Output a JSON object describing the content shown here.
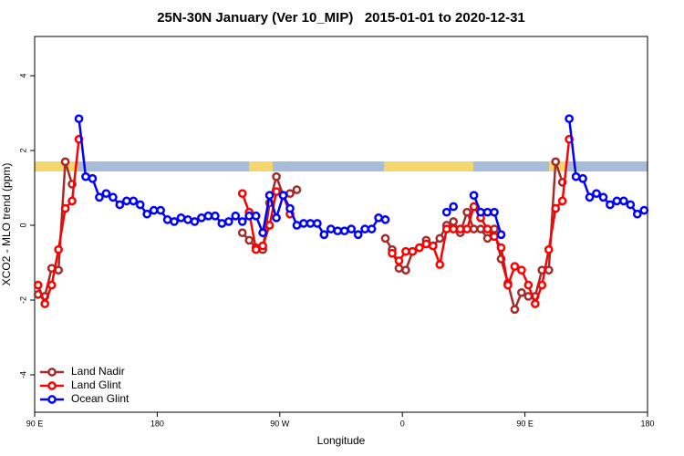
{
  "chart_data": {
    "type": "line",
    "title": "25N-30N January (Ver 10_MIP)   2015-01-01 to 2020-12-31",
    "x_label": "Longitude",
    "y_label": "XCO2 - MLO trend (ppm)",
    "xlim": [
      90,
      540
    ],
    "ylim": [
      -5,
      5.05
    ],
    "xticks": [
      {
        "value": 90,
        "label": "90 E"
      },
      180,
      {
        "value": 270,
        "label": "90 W"
      },
      {
        "value": 360,
        "label": "0"
      },
      {
        "value": 450,
        "label": "90 E"
      },
      {
        "value": 540,
        "label": "180"
      }
    ],
    "yticks": [
      -4,
      -2,
      0,
      2,
      4
    ],
    "legend": "bottom-left",
    "x": [
      92.5,
      97.5,
      102.5,
      107.5,
      112.5,
      117.5,
      122.5,
      127.5,
      132.5,
      137.5,
      142.5,
      147.5,
      152.5,
      157.5,
      162.5,
      167.5,
      172.5,
      177.5,
      182.5,
      187.5,
      192.5,
      197.5,
      202.5,
      207.5,
      212.5,
      217.5,
      222.5,
      227.5,
      232.5,
      237.5,
      242.5,
      247.5,
      252.5,
      257.5,
      262.5,
      267.5,
      272.5,
      277.5,
      282.5,
      287.5,
      292.5,
      297.5,
      302.5,
      307.5,
      312.5,
      317.5,
      322.5,
      327.5,
      332.5,
      337.5,
      342.5,
      347.5,
      352.5,
      357.5,
      362.5,
      367.5,
      372.5,
      377.5,
      382.5,
      387.5,
      392.5,
      397.5,
      402.5,
      407.5,
      412.5,
      417.5,
      422.5,
      427.5,
      432.5,
      437.5,
      442.5,
      447.5,
      452.5,
      457.5,
      462.5,
      467.5,
      472.5,
      477.5,
      482.5,
      487.5,
      492.5,
      497.5,
      502.5,
      507.5,
      512.5,
      517.5,
      522.5,
      527.5,
      532.5,
      537.5
    ],
    "series": [
      {
        "name": "Land Nadir",
        "color": "#a52a2a",
        "values": [
          -1.85,
          -1.9,
          -1.15,
          -1.2,
          1.7,
          1.1,
          null,
          null,
          null,
          null,
          null,
          null,
          null,
          null,
          null,
          null,
          null,
          null,
          null,
          null,
          null,
          null,
          null,
          null,
          null,
          null,
          null,
          null,
          null,
          null,
          -0.2,
          -0.4,
          -0.6,
          -0.65,
          0.6,
          1.3,
          0.8,
          0.85,
          0.95,
          null,
          null,
          null,
          null,
          null,
          null,
          null,
          null,
          null,
          null,
          null,
          null,
          -0.35,
          -0.65,
          -1.15,
          -1.2,
          -0.7,
          -0.6,
          -0.4,
          -0.55,
          -0.35,
          0,
          0.1,
          -0.2,
          0.35,
          -0.1,
          -0.1,
          -0.35,
          -0.1,
          -0.9,
          -1.55,
          -2.25,
          -1.8,
          -1.9,
          -1.9,
          -1.2,
          -1.2,
          1.7,
          1.15,
          null,
          null,
          null,
          null,
          null,
          null,
          null,
          null,
          null,
          null,
          null,
          null
        ]
      },
      {
        "name": "Land Glint",
        "color": "#ff0000",
        "values": [
          -1.6,
          -2.1,
          -1.6,
          -0.65,
          0.45,
          0.65,
          2.3,
          null,
          null,
          null,
          null,
          null,
          null,
          null,
          null,
          null,
          null,
          null,
          null,
          null,
          null,
          null,
          null,
          null,
          null,
          null,
          null,
          null,
          null,
          null,
          0.85,
          0.35,
          -0.65,
          -0.55,
          0,
          0.9,
          0.8,
          0.3,
          null,
          null,
          null,
          null,
          null,
          null,
          null,
          null,
          null,
          null,
          null,
          null,
          null,
          null,
          -0.75,
          -0.95,
          -0.7,
          -0.7,
          -0.6,
          -0.5,
          -0.55,
          -1.05,
          -0.1,
          -0.1,
          -0.1,
          -0.1,
          0.5,
          0.2,
          -0.1,
          -0.3,
          -0.6,
          -1.6,
          -1.1,
          -1.2,
          -1.6,
          -2.1,
          -1.6,
          -0.65,
          0.45,
          0.65,
          2.3,
          null,
          null,
          null,
          null,
          null,
          null,
          null,
          null,
          null,
          null,
          null
        ]
      },
      {
        "name": "Ocean Glint",
        "color": "#0000ff",
        "values": [
          null,
          null,
          null,
          null,
          null,
          null,
          2.85,
          1.3,
          1.25,
          0.75,
          0.85,
          0.75,
          0.55,
          0.65,
          0.65,
          0.55,
          0.3,
          0.4,
          0.4,
          0.15,
          0.1,
          0.2,
          0.15,
          0.1,
          0.2,
          0.25,
          0.25,
          0.05,
          0.1,
          0.25,
          0.1,
          0.25,
          0.25,
          -0.2,
          0.8,
          0.2,
          0.8,
          0.45,
          0,
          0.05,
          0.05,
          0.05,
          -0.25,
          -0.1,
          -0.15,
          -0.15,
          -0.1,
          -0.25,
          -0.1,
          -0.1,
          0.2,
          0.15,
          null,
          null,
          null,
          null,
          null,
          null,
          null,
          null,
          0.35,
          0.5,
          null,
          null,
          0.8,
          0.35,
          0.35,
          0.35,
          -0.25,
          null,
          null,
          null,
          null,
          null,
          null,
          null,
          null,
          null,
          2.85,
          1.3,
          1.25,
          0.75,
          0.85,
          0.75,
          0.55,
          0.65,
          0.65,
          0.55,
          0.3,
          0.4
        ]
      }
    ]
  }
}
